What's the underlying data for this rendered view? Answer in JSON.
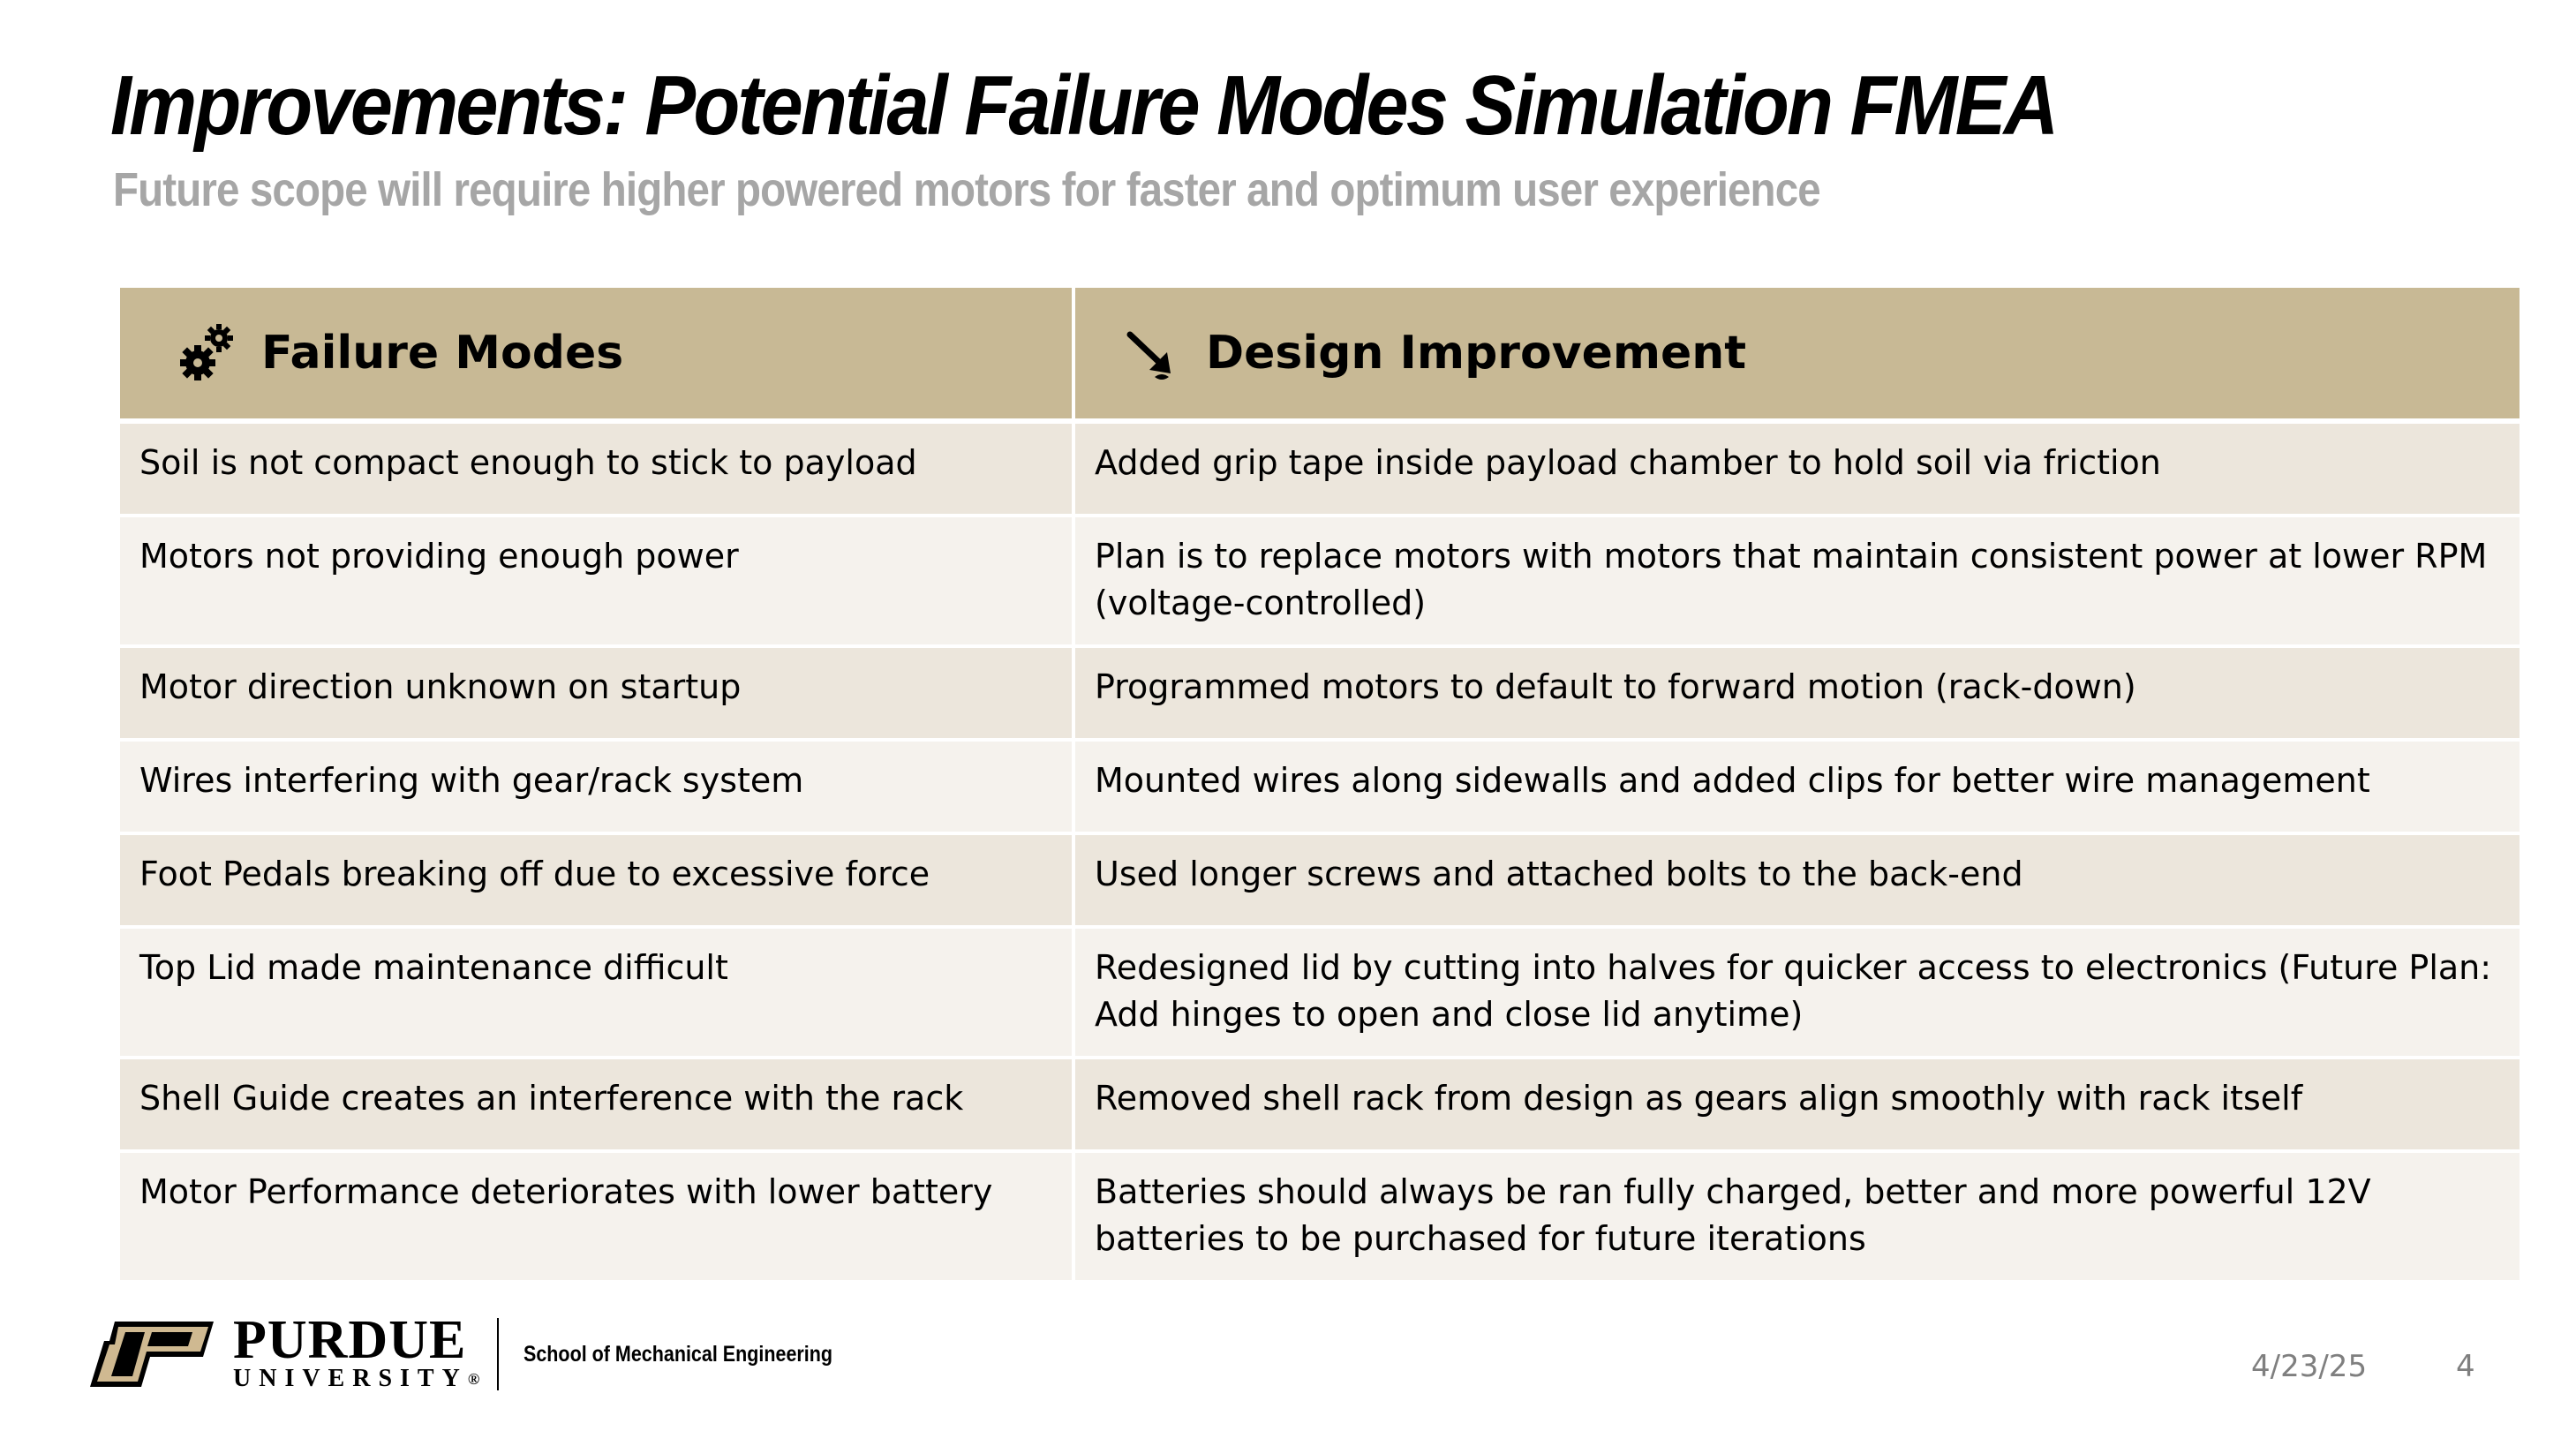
{
  "slide": {
    "title": "Improvements: Potential Failure Modes Simulation FMEA",
    "subtitle": "Future scope will require higher powered motors for faster and optimum user experience"
  },
  "table": {
    "headers": [
      {
        "label": "Failure Modes",
        "icon": "gears-icon"
      },
      {
        "label": "Design Improvement",
        "icon": "wrench-arrow-icon"
      }
    ],
    "rows": [
      {
        "failure": "Soil is not compact enough to stick to payload",
        "improvement": "Added grip tape inside payload chamber to hold soil via friction"
      },
      {
        "failure": "Motors not providing enough power",
        "improvement": "Plan is to replace motors with motors that maintain consistent power at lower RPM (voltage-controlled)"
      },
      {
        "failure": "Motor direction unknown on startup",
        "improvement": "Programmed motors to default to forward motion (rack-down)"
      },
      {
        "failure": "Wires interfering with gear/rack system",
        "improvement": "Mounted wires along sidewalls and added clips for better wire management"
      },
      {
        "failure": "Foot Pedals breaking off due to excessive force",
        "improvement": "Used longer screws and attached bolts to the back-end"
      },
      {
        "failure": "Top Lid made maintenance difficult",
        "improvement": "Redesigned lid by cutting into halves for quicker access to electronics (Future Plan: Add hinges to open and close lid anytime)"
      },
      {
        "failure": "Shell Guide creates an interference with the rack",
        "improvement": "Removed shell rack from design as gears align smoothly with rack itself"
      },
      {
        "failure": "Motor Performance deteriorates with lower battery",
        "improvement": "Batteries should always be ran fully charged, better and more powerful 12V batteries to be purchased for future iterations"
      }
    ]
  },
  "footer": {
    "logo_name": "PURDUE",
    "logo_sub": "UNIVERSITY",
    "logo_mark": "®",
    "school": "School of Mechanical Engineering",
    "date": "4/23/25",
    "page": "4"
  },
  "colors": {
    "header_bg": "#c8b995",
    "row_odd": "#ece6dc",
    "row_even": "#f5f2ed",
    "subtitle": "#a6a6a6",
    "purdue_gold": "#cfb991"
  }
}
